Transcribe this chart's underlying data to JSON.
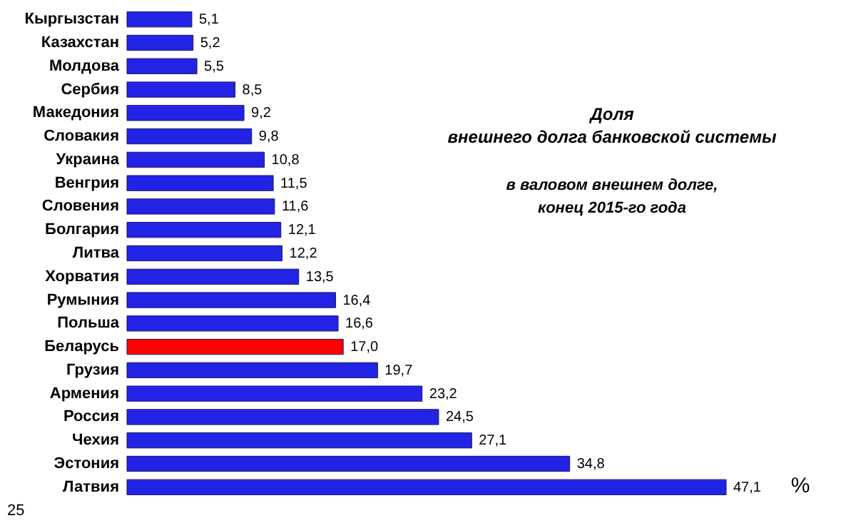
{
  "chart_data": {
    "type": "bar",
    "orientation": "horizontal",
    "title": "Доля\nвнешнего долга банковской системы",
    "subtitle": "в валовом внешнем долге,\nконец 2015-го года",
    "xlabel": "%",
    "categories": [
      "Кыргызстан",
      "Казахстан",
      "Молдова",
      "Сербия",
      "Македония",
      "Словакия",
      "Украина",
      "Венгрия",
      "Словения",
      "Болгария",
      "Литва",
      "Хорватия",
      "Румыния",
      "Польша",
      "Беларусь",
      "Грузия",
      "Армения",
      "Россия",
      "Чехия",
      "Эстония",
      "Латвия"
    ],
    "values": [
      5.1,
      5.2,
      5.5,
      8.5,
      9.2,
      9.8,
      10.8,
      11.5,
      11.6,
      12.1,
      12.2,
      13.5,
      16.4,
      16.6,
      17.0,
      19.7,
      23.2,
      24.5,
      27.1,
      34.8,
      47.1
    ],
    "colors": [
      "#2323e6",
      "#2323e6",
      "#2323e6",
      "#2323e6",
      "#2323e6",
      "#2323e6",
      "#2323e6",
      "#2323e6",
      "#2323e6",
      "#2323e6",
      "#2323e6",
      "#2323e6",
      "#2323e6",
      "#2323e6",
      "#ff0000",
      "#2323e6",
      "#2323e6",
      "#2323e6",
      "#2323e6",
      "#2323e6",
      "#2323e6"
    ],
    "value_labels": [
      "5,1",
      "5,2",
      "5,5",
      "8,5",
      "9,2",
      "9,8",
      "10,8",
      "11,5",
      "11,6",
      "12,1",
      "12,2",
      "13,5",
      "16,4",
      "16,6",
      "17,0",
      "19,7",
      "23,2",
      "24,5",
      "27,1",
      "34,8",
      "47,1"
    ],
    "annotations": [
      "25"
    ]
  }
}
